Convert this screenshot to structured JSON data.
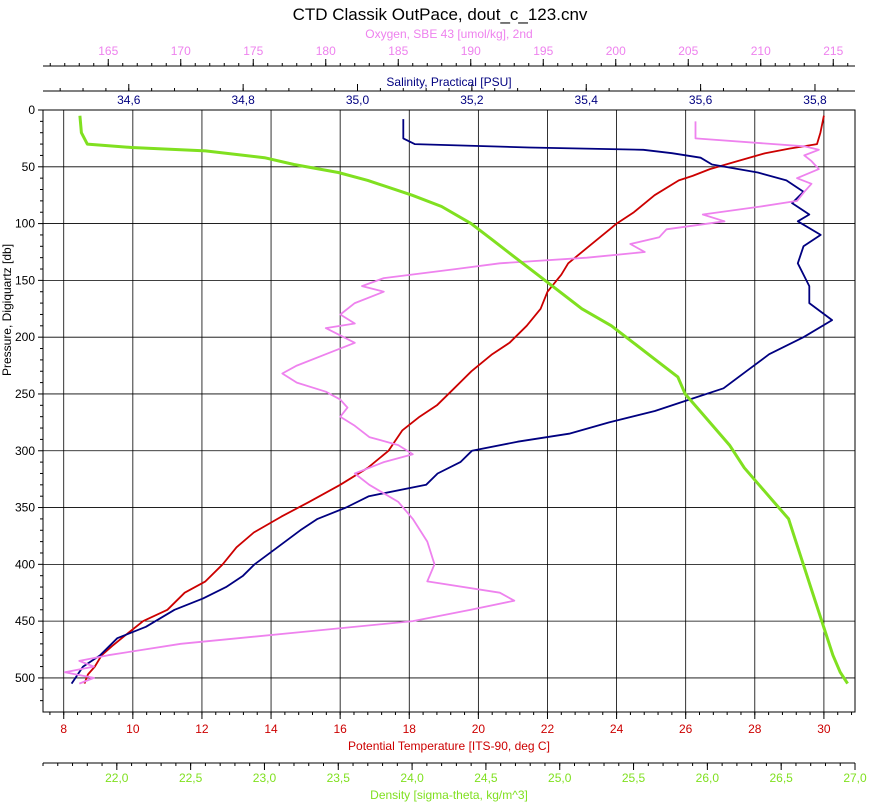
{
  "chart_data": {
    "type": "line",
    "title": "CTD Classik OutPace, dout_c_123.cnv",
    "ylabel": "Pressure, Digiquartz [db]",
    "ylim": [
      0,
      530
    ],
    "y_ticks": [
      "0",
      "50",
      "100",
      "150",
      "200",
      "250",
      "300",
      "350",
      "400",
      "450",
      "500"
    ],
    "y_inverted": true,
    "grid": true,
    "axes": {
      "oxygen": {
        "label": "Oxygen, SBE 43 [umol/kg], 2nd",
        "color": "#ee82ee",
        "position": "top-outer",
        "range": [
          160.5,
          216.5
        ],
        "ticks": [
          "165",
          "170",
          "175",
          "180",
          "185",
          "190",
          "195",
          "200",
          "205",
          "210",
          "215"
        ]
      },
      "salinity": {
        "label": "Salinity, Practical [PSU]",
        "color": "#000080",
        "position": "top-inner",
        "range": [
          34.45,
          35.87
        ],
        "ticks": [
          "34,6",
          "34,8",
          "35,0",
          "35,2",
          "35,4",
          "35,6",
          "35,8"
        ]
      },
      "temperature": {
        "label": "Potential Temperature [ITS-90, deg C]",
        "color": "#cc0000",
        "position": "bottom-inner",
        "range": [
          7.4,
          30.9
        ],
        "ticks": [
          "8",
          "10",
          "12",
          "14",
          "16",
          "18",
          "20",
          "22",
          "24",
          "26",
          "28",
          "30"
        ]
      },
      "density": {
        "label": "Density [sigma-theta, kg/m^3]",
        "color": "#80e020",
        "position": "bottom-outer",
        "range": [
          21.5,
          27.0
        ],
        "ticks": [
          "22,0",
          "22,5",
          "23,0",
          "23,5",
          "24,0",
          "24,5",
          "25,0",
          "25,5",
          "26,0",
          "26,5",
          "27,0"
        ]
      }
    },
    "series": [
      {
        "axis": "temperature",
        "color": "#cc0000",
        "points": [
          [
            30.0,
            5
          ],
          [
            29.9,
            20
          ],
          [
            29.8,
            30
          ],
          [
            29.0,
            34
          ],
          [
            28.3,
            38
          ],
          [
            27.5,
            45
          ],
          [
            26.7,
            52
          ],
          [
            26.2,
            58
          ],
          [
            25.8,
            62
          ],
          [
            25.1,
            75
          ],
          [
            24.5,
            90
          ],
          [
            24.0,
            100
          ],
          [
            23.8,
            105
          ],
          [
            23.2,
            120
          ],
          [
            22.6,
            135
          ],
          [
            22.4,
            145
          ],
          [
            22.0,
            160
          ],
          [
            21.8,
            175
          ],
          [
            21.4,
            190
          ],
          [
            20.9,
            205
          ],
          [
            20.4,
            215
          ],
          [
            19.8,
            230
          ],
          [
            19.3,
            245
          ],
          [
            18.8,
            260
          ],
          [
            18.3,
            270
          ],
          [
            17.8,
            282
          ],
          [
            17.4,
            300
          ],
          [
            16.8,
            315
          ],
          [
            16.0,
            330
          ],
          [
            15.1,
            345
          ],
          [
            14.3,
            358
          ],
          [
            13.5,
            372
          ],
          [
            13.0,
            385
          ],
          [
            12.6,
            400
          ],
          [
            12.1,
            415
          ],
          [
            11.5,
            425
          ],
          [
            11.0,
            440
          ],
          [
            10.3,
            450
          ],
          [
            9.8,
            462
          ],
          [
            9.4,
            472
          ],
          [
            9.1,
            480
          ],
          [
            8.9,
            490
          ],
          [
            8.7,
            497
          ],
          [
            8.6,
            505
          ]
        ]
      },
      {
        "axis": "salinity",
        "color": "#000080",
        "points": [
          [
            35.08,
            8
          ],
          [
            35.08,
            25
          ],
          [
            35.1,
            30
          ],
          [
            35.3,
            33
          ],
          [
            35.5,
            35
          ],
          [
            35.55,
            38
          ],
          [
            35.6,
            42
          ],
          [
            35.62,
            48
          ],
          [
            35.7,
            55
          ],
          [
            35.75,
            62
          ],
          [
            35.78,
            72
          ],
          [
            35.76,
            82
          ],
          [
            35.79,
            92
          ],
          [
            35.77,
            98
          ],
          [
            35.81,
            110
          ],
          [
            35.78,
            120
          ],
          [
            35.77,
            135
          ],
          [
            35.79,
            155
          ],
          [
            35.79,
            170
          ],
          [
            35.83,
            185
          ],
          [
            35.78,
            200
          ],
          [
            35.72,
            215
          ],
          [
            35.68,
            230
          ],
          [
            35.64,
            245
          ],
          [
            35.58,
            255
          ],
          [
            35.52,
            265
          ],
          [
            35.44,
            275
          ],
          [
            35.37,
            285
          ],
          [
            35.28,
            292
          ],
          [
            35.2,
            300
          ],
          [
            35.18,
            310
          ],
          [
            35.14,
            320
          ],
          [
            35.12,
            330
          ],
          [
            35.02,
            340
          ],
          [
            34.98,
            350
          ],
          [
            34.93,
            360
          ],
          [
            34.9,
            370
          ],
          [
            34.86,
            385
          ],
          [
            34.82,
            400
          ],
          [
            34.8,
            410
          ],
          [
            34.77,
            420
          ],
          [
            34.73,
            430
          ],
          [
            34.68,
            440
          ],
          [
            34.63,
            455
          ],
          [
            34.58,
            465
          ],
          [
            34.55,
            480
          ],
          [
            34.52,
            490
          ],
          [
            34.5,
            505
          ]
        ]
      },
      {
        "axis": "oxygen",
        "color": "#ee82ee",
        "points": [
          [
            205.5,
            10
          ],
          [
            205.5,
            25
          ],
          [
            213,
            32
          ],
          [
            214,
            35
          ],
          [
            213,
            40
          ],
          [
            213.5,
            45
          ],
          [
            214,
            52
          ],
          [
            212.5,
            60
          ],
          [
            213.5,
            65
          ],
          [
            213,
            72
          ],
          [
            212.5,
            80
          ],
          [
            210,
            85
          ],
          [
            206,
            92
          ],
          [
            207.5,
            98
          ],
          [
            203.5,
            105
          ],
          [
            203,
            112
          ],
          [
            201,
            118
          ],
          [
            202,
            125
          ],
          [
            198,
            130
          ],
          [
            192,
            135
          ],
          [
            189,
            140
          ],
          [
            184,
            148
          ],
          [
            182.5,
            155
          ],
          [
            184,
            160
          ],
          [
            182,
            170
          ],
          [
            181,
            180
          ],
          [
            182,
            188
          ],
          [
            180,
            192
          ],
          [
            182,
            205
          ],
          [
            180,
            215
          ],
          [
            178,
            225
          ],
          [
            177,
            232
          ],
          [
            178,
            240
          ],
          [
            180,
            248
          ],
          [
            181,
            255
          ],
          [
            181.5,
            262
          ],
          [
            181,
            270
          ],
          [
            182,
            278
          ],
          [
            183,
            288
          ],
          [
            185,
            295
          ],
          [
            186,
            303
          ],
          [
            184,
            310
          ],
          [
            182,
            320
          ],
          [
            183,
            330
          ],
          [
            185,
            345
          ],
          [
            186,
            360
          ],
          [
            187,
            380
          ],
          [
            187.5,
            400
          ],
          [
            187,
            415
          ],
          [
            192,
            425
          ],
          [
            193,
            432
          ],
          [
            190,
            440
          ],
          [
            186,
            450
          ],
          [
            178,
            460
          ],
          [
            170,
            470
          ],
          [
            165,
            480
          ],
          [
            163,
            485
          ],
          [
            164,
            490
          ],
          [
            162,
            495
          ],
          [
            164,
            500
          ],
          [
            163,
            505
          ]
        ]
      },
      {
        "axis": "density",
        "color": "#80e020",
        "points": [
          [
            21.75,
            5
          ],
          [
            21.76,
            20
          ],
          [
            21.8,
            30
          ],
          [
            22.1,
            33
          ],
          [
            22.6,
            36
          ],
          [
            23.0,
            42
          ],
          [
            23.2,
            48
          ],
          [
            23.5,
            55
          ],
          [
            23.7,
            62
          ],
          [
            24.0,
            75
          ],
          [
            24.2,
            85
          ],
          [
            24.4,
            100
          ],
          [
            24.55,
            115
          ],
          [
            24.7,
            130
          ],
          [
            24.85,
            145
          ],
          [
            25.0,
            160
          ],
          [
            25.15,
            175
          ],
          [
            25.35,
            190
          ],
          [
            25.5,
            205
          ],
          [
            25.65,
            220
          ],
          [
            25.8,
            235
          ],
          [
            25.85,
            250
          ],
          [
            25.95,
            265
          ],
          [
            26.05,
            280
          ],
          [
            26.15,
            295
          ],
          [
            26.25,
            315
          ],
          [
            26.35,
            330
          ],
          [
            26.45,
            345
          ],
          [
            26.55,
            360
          ],
          [
            26.6,
            380
          ],
          [
            26.65,
            400
          ],
          [
            26.7,
            420
          ],
          [
            26.75,
            440
          ],
          [
            26.8,
            460
          ],
          [
            26.85,
            480
          ],
          [
            26.9,
            495
          ],
          [
            26.95,
            505
          ]
        ]
      }
    ]
  }
}
